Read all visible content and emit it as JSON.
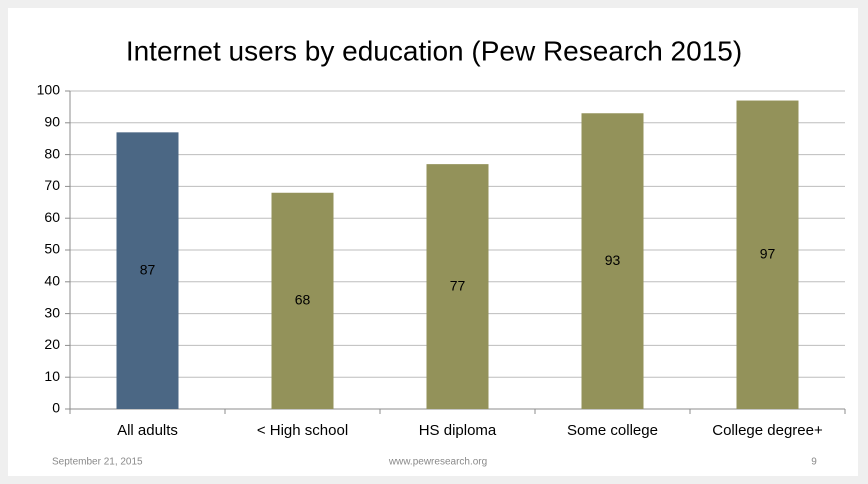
{
  "chart_data": {
    "type": "bar",
    "title": "Internet users by education (Pew Research 2015)",
    "categories": [
      "All adults",
      "< High school",
      "HS diploma",
      "Some college",
      "College degree+"
    ],
    "values": [
      87,
      68,
      77,
      93,
      97
    ],
    "colors": [
      "#4b6784",
      "#93925a",
      "#93925a",
      "#93925a",
      "#93925a"
    ],
    "ylim": [
      0,
      100
    ],
    "yticks": [
      0,
      10,
      20,
      30,
      40,
      50,
      60,
      70,
      80,
      90,
      100
    ],
    "grid": true
  },
  "footer": {
    "date": "September 21, 2015",
    "site": "www.pewresearch.org",
    "page": "9"
  }
}
